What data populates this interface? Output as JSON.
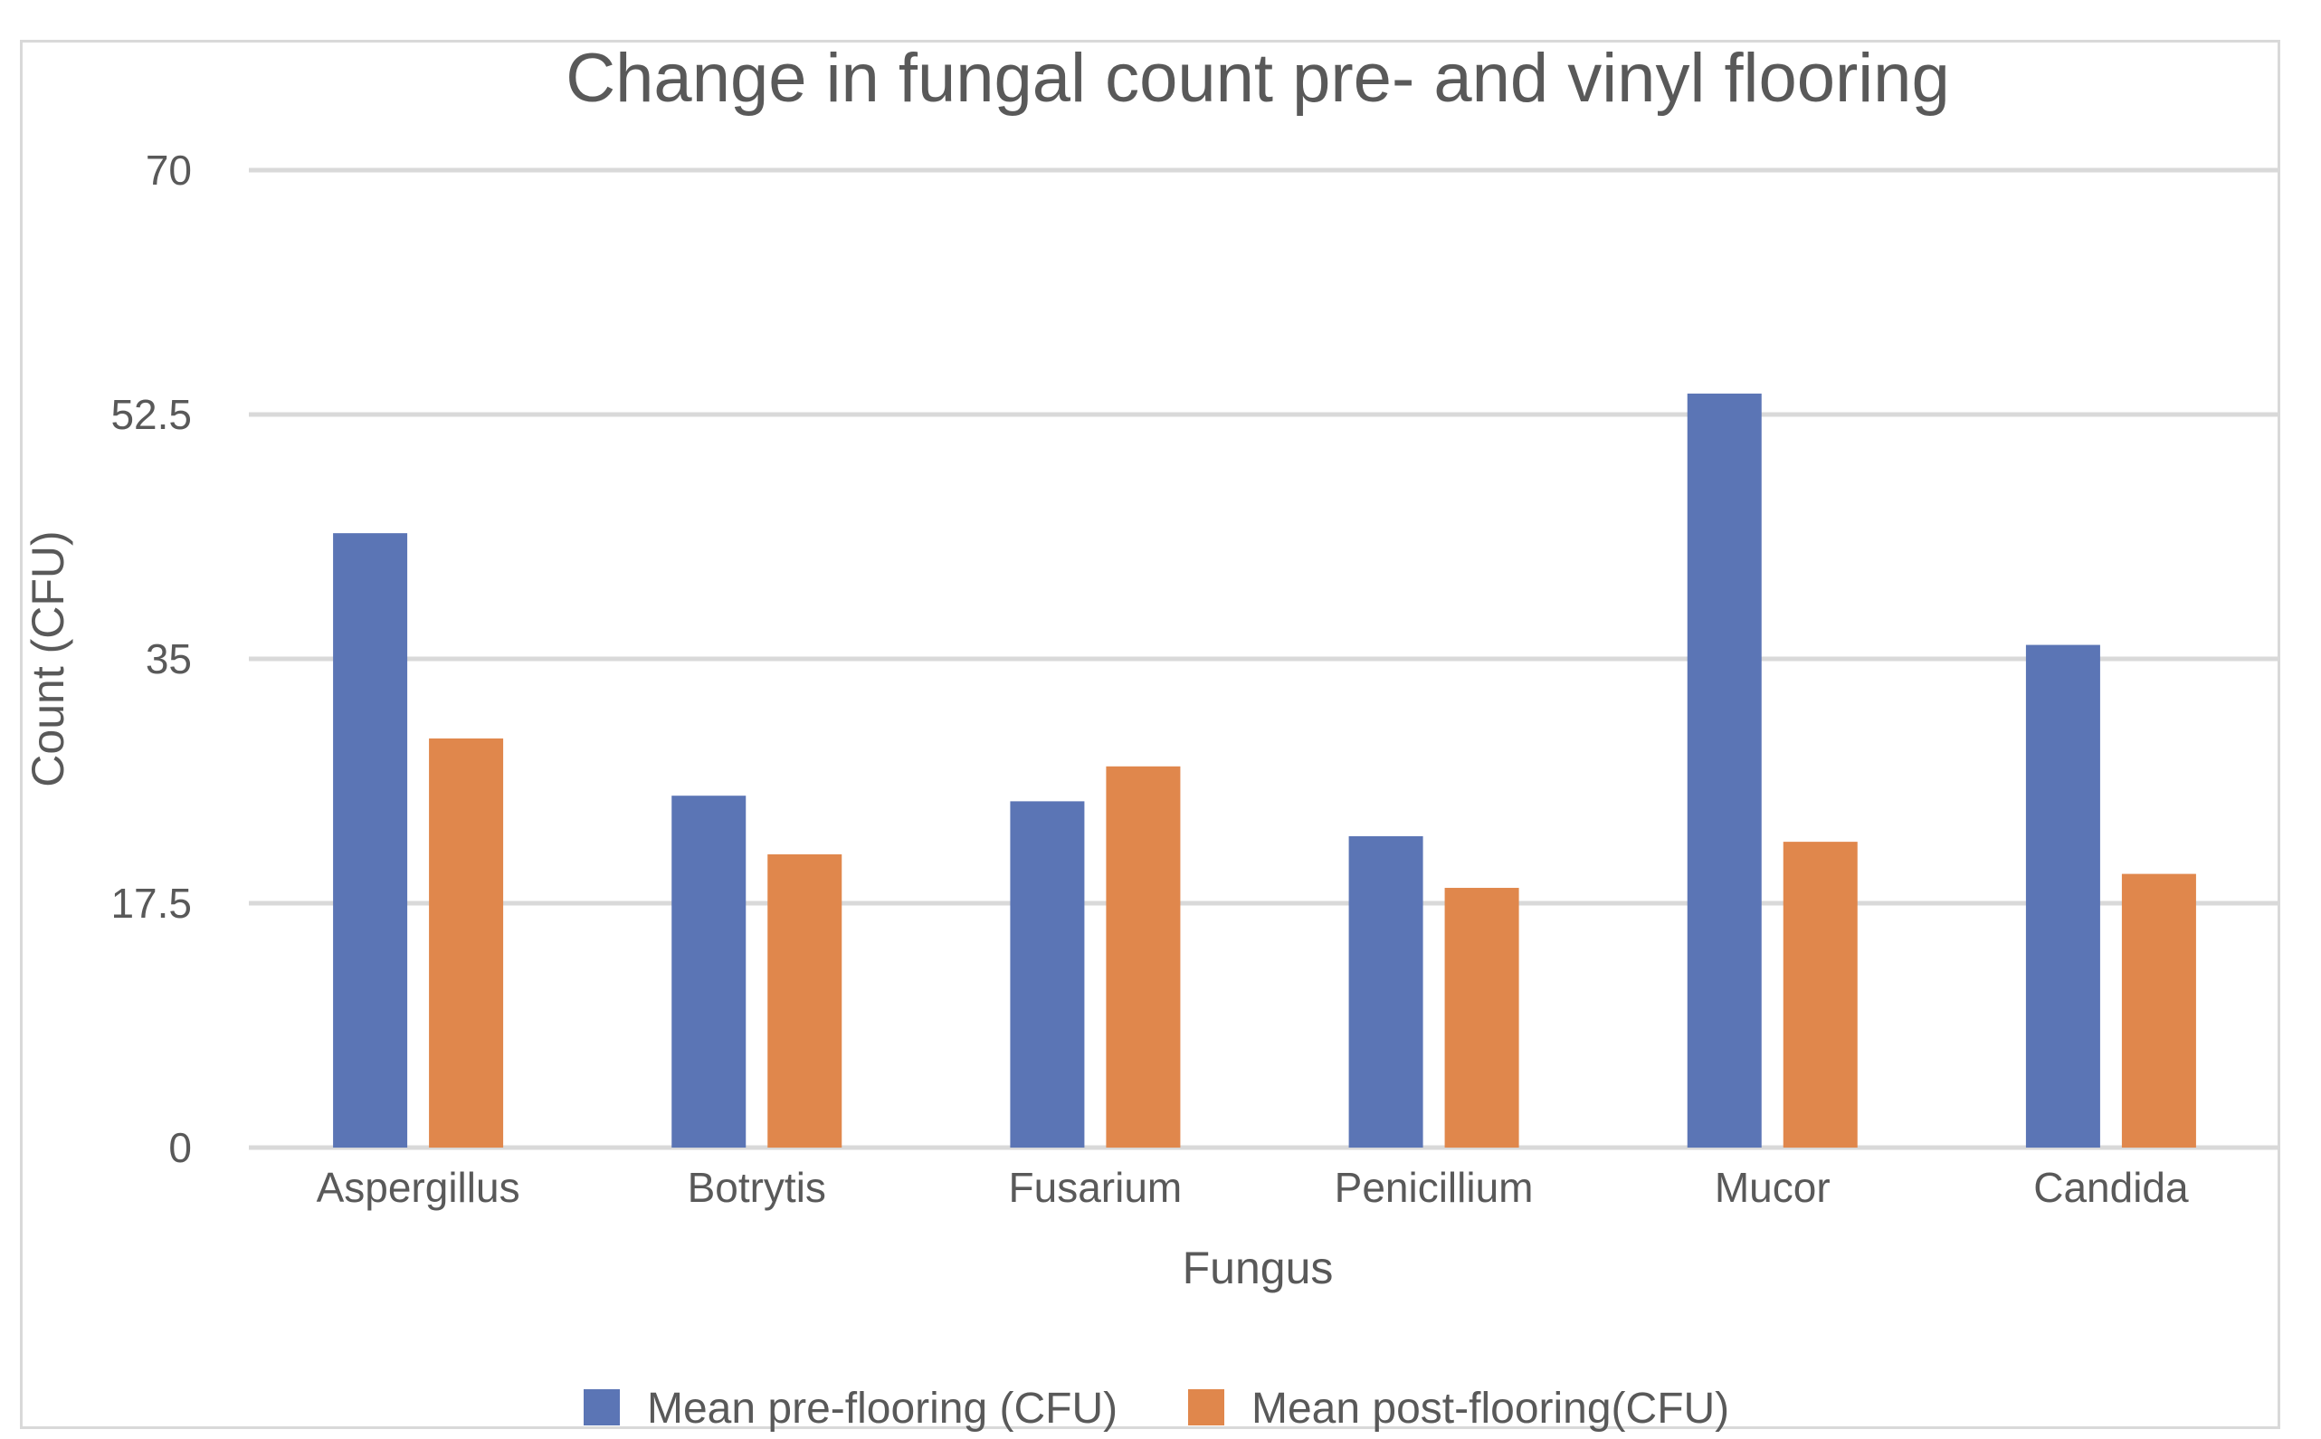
{
  "chart_data": {
    "type": "bar",
    "title": "Change in fungal count pre- and vinyl flooring",
    "xlabel": "Fungus",
    "ylabel": "Count (CFU)",
    "categories": [
      "Aspergillus",
      "Botrytis",
      "Fusarium",
      "Penicillium",
      "Mucor",
      "Candida"
    ],
    "series": [
      {
        "name": "Mean pre-flooring (CFU)",
        "color": "#5b75b5",
        "values": [
          44,
          25.2,
          24.8,
          22.3,
          54,
          36
        ]
      },
      {
        "name": "Mean post-flooring(CFU)",
        "color": "#e0874c",
        "values": [
          29.3,
          21,
          27.3,
          18.6,
          21.9,
          19.6
        ]
      }
    ],
    "ylim": [
      0,
      70
    ],
    "yticks": [
      "0",
      "17.5",
      "35",
      "52.5",
      "70"
    ],
    "grid": true,
    "legend_position": "bottom"
  }
}
